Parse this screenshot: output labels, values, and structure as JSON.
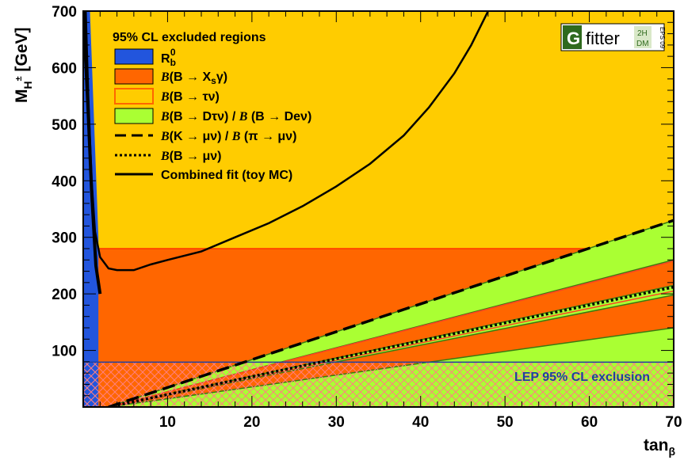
{
  "chart_data": {
    "type": "area",
    "x_range": [
      0,
      70
    ],
    "y_range": [
      0,
      700
    ],
    "x_ticks": [
      10,
      20,
      30,
      40,
      50,
      60,
      70
    ],
    "y_ticks": [
      100,
      200,
      300,
      400,
      500,
      600,
      700
    ],
    "x_tick_labels": [
      "10",
      "20",
      "30",
      "40",
      "50",
      "60",
      "70"
    ],
    "y_tick_labels": [
      "100",
      "200",
      "300",
      "400",
      "500",
      "600",
      "700"
    ],
    "xlabel": "tan",
    "xlabel_sub": "β",
    "ylabel": "M",
    "ylabel_sub": "H",
    "ylabel_sup": "±",
    "ylabel_rest": " [GeV]",
    "legend_title": "95% CL excluded regions",
    "colors": {
      "background": "#ffcc00",
      "bsg": "#ff6600",
      "btaunu": "#ff9944",
      "dtaunu": "#aaff33",
      "rb": "#2255dd",
      "lep_hatch": "#ff7f7f",
      "lep_border": "#1f3fa0"
    },
    "series": [
      {
        "name": "R_b^0",
        "kind": "filled",
        "color": "#2255dd",
        "x": [
          0,
          0.8,
          1.3,
          1.8,
          1.8,
          0
        ],
        "y": [
          700,
          700,
          500,
          300,
          0,
          0
        ]
      },
      {
        "name": "B(B → X_s γ)",
        "kind": "filled",
        "color": "#ff6600",
        "x": [
          0,
          70,
          70,
          0
        ],
        "y": [
          280,
          280,
          0,
          0
        ]
      },
      {
        "name": "B(B → τν)",
        "kind": "band",
        "color": "#ff9944",
        "x": [
          3,
          70
        ],
        "y_low": [
          0,
          190
        ],
        "y_high": [
          0,
          330
        ]
      },
      {
        "name": "B(B → Dτν) / B (B → Deν)",
        "kind": "bands",
        "color": "#aaff33",
        "bands": [
          {
            "x": [
              3,
              70
            ],
            "y_low": [
              0,
              260
            ],
            "y_high": [
              0,
              330
            ]
          },
          {
            "x": [
              3,
              70
            ],
            "y_low": [
              0,
              198
            ],
            "y_high": [
              0,
              215
            ]
          },
          {
            "x": [
              3,
              70
            ],
            "y_low": [
              0,
              0
            ],
            "y_high": [
              0,
              140
            ]
          }
        ]
      },
      {
        "name": "B(K → μν) / B (π → μν)",
        "kind": "line",
        "style": "dashed",
        "x": [
          3,
          70
        ],
        "y": [
          0,
          330
        ]
      },
      {
        "name": "B(B → μν)",
        "kind": "line",
        "style": "dotted",
        "x": [
          3,
          70
        ],
        "y": [
          0,
          212
        ]
      },
      {
        "name": "Combined fit (toy MC)",
        "kind": "line",
        "style": "solid",
        "x": [
          0.3,
          0.6,
          1.0,
          1.4,
          2,
          3,
          4,
          6,
          8,
          10,
          14,
          18,
          22,
          26,
          30,
          34,
          38,
          41,
          44,
          46,
          48
        ],
        "y": [
          700,
          550,
          400,
          310,
          265,
          245,
          242,
          242,
          252,
          260,
          275,
          300,
          325,
          355,
          390,
          430,
          480,
          530,
          590,
          640,
          700
        ]
      },
      {
        "name": "Rb line",
        "kind": "line",
        "style": "thick",
        "x": [
          0,
          0.5,
          1.0,
          1.5,
          2.0
        ],
        "y": [
          700,
          550,
          380,
          250,
          200
        ]
      }
    ],
    "lep_exclusion": {
      "label": "LEP 95% CL exclusion",
      "y_max": 79.3
    }
  },
  "logo": {
    "g": "G",
    "fitter": "fitter",
    "tag_top": "2H",
    "tag_bottom": "DM",
    "eps": "EPS 09"
  }
}
